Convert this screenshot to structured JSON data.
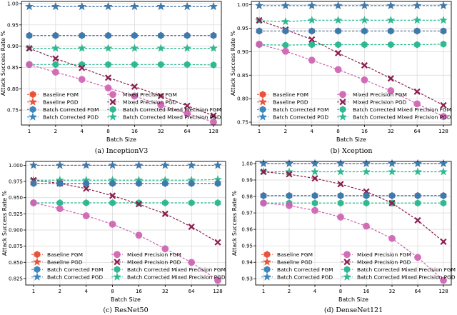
{
  "colors": {
    "baseline": "#e8472e",
    "batch_corrected": "#2e7fb8",
    "mixed_fgm": "#d063b3",
    "mixed_pgd": "#8a1f4e",
    "bc_mixed": "#22b58a"
  },
  "chart_data": [
    {
      "type": "line",
      "caption": "(a) InceptionV3",
      "xlabel": "Batch Size",
      "ylabel": "Attack Success Rate %",
      "categories": [
        "1",
        "2",
        "4",
        "8",
        "16",
        "32",
        "64",
        "128"
      ],
      "ylim": [
        0.715,
        1.005
      ],
      "yticks": [
        0.75,
        0.8,
        0.85,
        0.9,
        0.95,
        1.0
      ],
      "ytick_labels": [
        "0.75",
        "0.80",
        "0.85",
        "0.90",
        "0.95",
        "1.00"
      ],
      "grid": true,
      "legend_location": "lower-left",
      "series": [
        {
          "name": "Baseline FGM",
          "key": "baseline",
          "marker": "hexagon",
          "linestyle": "dashed",
          "values": [
            0.925,
            0.925,
            0.925,
            0.925,
            0.925,
            0.925,
            0.925,
            0.925
          ]
        },
        {
          "name": "Baseline PGD",
          "key": "baseline",
          "marker": "star",
          "linestyle": "dashed",
          "values": [
            0.993,
            0.993,
            0.993,
            0.993,
            0.993,
            0.993,
            0.993,
            0.993
          ]
        },
        {
          "name": "Batch Corrected FGM",
          "key": "batch_corrected",
          "marker": "hexagon",
          "linestyle": "dashed",
          "values": [
            0.925,
            0.925,
            0.925,
            0.925,
            0.925,
            0.925,
            0.925,
            0.925
          ]
        },
        {
          "name": "Batch Corrected PGD",
          "key": "batch_corrected",
          "marker": "star",
          "linestyle": "dashed",
          "values": [
            0.993,
            0.993,
            0.993,
            0.993,
            0.993,
            0.993,
            0.993,
            0.993
          ]
        },
        {
          "name": "Mixed Precision FGM",
          "key": "mixed_fgm",
          "marker": "circle",
          "linestyle": "dashed",
          "values": [
            0.857,
            0.839,
            0.822,
            0.802,
            0.783,
            0.762,
            0.742,
            0.722
          ]
        },
        {
          "name": "Mixed Precision PGD",
          "key": "mixed_pgd",
          "marker": "x",
          "linestyle": "dashed",
          "values": [
            0.895,
            0.871,
            0.849,
            0.826,
            0.805,
            0.783,
            0.76,
            0.737
          ]
        },
        {
          "name": "Batch Corrected Mixed Precision FGM",
          "key": "bc_mixed",
          "marker": "hexagon",
          "linestyle": "dashed",
          "values": [
            0.857,
            0.857,
            0.857,
            0.857,
            0.857,
            0.857,
            0.857,
            0.856
          ]
        },
        {
          "name": "Batch Corrected Mixed Precision PGD",
          "key": "bc_mixed",
          "marker": "star",
          "linestyle": "dashed",
          "values": [
            0.895,
            0.895,
            0.895,
            0.895,
            0.895,
            0.895,
            0.895,
            0.895
          ]
        }
      ]
    },
    {
      "type": "line",
      "caption": "(b) Xception",
      "xlabel": "Batch Size",
      "ylabel": "Attack Success Rate %",
      "categories": [
        "1",
        "2",
        "4",
        "8",
        "16",
        "32",
        "64",
        "128"
      ],
      "ylim": [
        0.744,
        1.007
      ],
      "yticks": [
        0.75,
        0.8,
        0.85,
        0.9,
        0.95,
        1.0
      ],
      "ytick_labels": [
        "0.75",
        "0.80",
        "0.85",
        "0.90",
        "0.95",
        "1.00"
      ],
      "grid": true,
      "legend_location": "lower-left",
      "series": [
        {
          "name": "Baseline FGM",
          "key": "baseline",
          "marker": "hexagon",
          "linestyle": "dashed",
          "values": [
            0.944,
            0.944,
            0.944,
            0.944,
            0.944,
            0.944,
            0.944,
            0.944
          ]
        },
        {
          "name": "Baseline PGD",
          "key": "baseline",
          "marker": "star",
          "linestyle": "dashed",
          "values": [
            0.998,
            0.998,
            0.998,
            0.998,
            0.998,
            0.998,
            0.998,
            0.998
          ]
        },
        {
          "name": "Batch Corrected FGM",
          "key": "batch_corrected",
          "marker": "hexagon",
          "linestyle": "dashed",
          "values": [
            0.944,
            0.944,
            0.944,
            0.944,
            0.944,
            0.944,
            0.944,
            0.944
          ]
        },
        {
          "name": "Batch Corrected PGD",
          "key": "batch_corrected",
          "marker": "star",
          "linestyle": "dashed",
          "values": [
            0.998,
            0.998,
            0.998,
            0.998,
            0.998,
            0.998,
            0.998,
            0.998
          ]
        },
        {
          "name": "Mixed Precision FGM",
          "key": "mixed_fgm",
          "marker": "circle",
          "linestyle": "dashed",
          "values": [
            0.916,
            0.901,
            0.882,
            0.862,
            0.84,
            0.817,
            0.789,
            0.762
          ]
        },
        {
          "name": "Mixed Precision PGD",
          "key": "mixed_pgd",
          "marker": "x",
          "linestyle": "dashed",
          "values": [
            0.967,
            0.947,
            0.926,
            0.897,
            0.871,
            0.843,
            0.815,
            0.786
          ]
        },
        {
          "name": "Batch Corrected Mixed Precision FGM",
          "key": "bc_mixed",
          "marker": "hexagon",
          "linestyle": "dashed",
          "values": [
            0.915,
            0.914,
            0.915,
            0.915,
            0.915,
            0.915,
            0.915,
            0.916
          ]
        },
        {
          "name": "Batch Corrected Mixed Precision PGD",
          "key": "bc_mixed",
          "marker": "star",
          "linestyle": "dashed",
          "values": [
            0.966,
            0.964,
            0.967,
            0.967,
            0.967,
            0.967,
            0.967,
            0.967
          ]
        }
      ]
    },
    {
      "type": "line",
      "caption": "(c) ResNet50",
      "xlabel": "Batch Size",
      "ylabel": "Attack Success Rate %",
      "categories": [
        "1",
        "2",
        "4",
        "8",
        "16",
        "32",
        "64",
        "128"
      ],
      "ylim": [
        0.815,
        1.006
      ],
      "yticks": [
        0.825,
        0.85,
        0.875,
        0.9,
        0.925,
        0.95,
        0.975,
        1.0
      ],
      "ytick_labels": [
        "0.825",
        "0.850",
        "0.875",
        "0.900",
        "0.925",
        "0.950",
        "0.975",
        "1.000"
      ],
      "grid": true,
      "legend_location": "lower-left",
      "series": [
        {
          "name": "Baseline FGM",
          "key": "baseline",
          "marker": "hexagon",
          "linestyle": "dashed",
          "values": [
            0.972,
            0.972,
            0.972,
            0.972,
            0.972,
            0.972,
            0.972,
            0.972
          ]
        },
        {
          "name": "Baseline PGD",
          "key": "baseline",
          "marker": "star",
          "linestyle": "dashed",
          "values": [
            1.0,
            1.0,
            1.0,
            1.0,
            1.0,
            1.0,
            1.0,
            1.0
          ]
        },
        {
          "name": "Batch Corrected FGM",
          "key": "batch_corrected",
          "marker": "hexagon",
          "linestyle": "dashed",
          "values": [
            0.972,
            0.972,
            0.972,
            0.972,
            0.972,
            0.972,
            0.972,
            0.972
          ]
        },
        {
          "name": "Batch Corrected PGD",
          "key": "batch_corrected",
          "marker": "star",
          "linestyle": "dashed",
          "values": [
            1.0,
            1.0,
            1.0,
            1.0,
            1.0,
            1.0,
            1.0,
            1.0
          ]
        },
        {
          "name": "Mixed Precision FGM",
          "key": "mixed_fgm",
          "marker": "circle",
          "linestyle": "dashed",
          "values": [
            0.942,
            0.933,
            0.922,
            0.909,
            0.892,
            0.871,
            0.85,
            0.822
          ]
        },
        {
          "name": "Mixed Precision PGD",
          "key": "mixed_pgd",
          "marker": "x",
          "linestyle": "dashed",
          "values": [
            0.977,
            0.972,
            0.964,
            0.953,
            0.94,
            0.925,
            0.905,
            0.881
          ]
        },
        {
          "name": "Batch Corrected Mixed Precision FGM",
          "key": "bc_mixed",
          "marker": "hexagon",
          "linestyle": "dashed",
          "values": [
            0.942,
            0.942,
            0.942,
            0.942,
            0.942,
            0.942,
            0.942,
            0.942
          ]
        },
        {
          "name": "Batch Corrected Mixed Precision PGD",
          "key": "bc_mixed",
          "marker": "star",
          "linestyle": "dashed",
          "values": [
            0.977,
            0.977,
            0.977,
            0.977,
            0.977,
            0.977,
            0.977,
            0.978
          ]
        }
      ]
    },
    {
      "type": "line",
      "caption": "(d) DenseNet121",
      "xlabel": "Batch Size",
      "ylabel": "Attack Success Rate %",
      "categories": [
        "1",
        "2",
        "4",
        "8",
        "16",
        "32",
        "64",
        "128"
      ],
      "ylim": [
        0.9262,
        1.0013
      ],
      "yticks": [
        0.93,
        0.94,
        0.95,
        0.96,
        0.97,
        0.98,
        0.99,
        1.0
      ],
      "ytick_labels": [
        "0.93",
        "0.94",
        "0.95",
        "0.96",
        "0.97",
        "0.98",
        "0.99",
        "1.00"
      ],
      "grid": true,
      "legend_location": "lower-left",
      "series": [
        {
          "name": "Baseline FGM",
          "key": "baseline",
          "marker": "hexagon",
          "linestyle": "dashed",
          "values": [
            0.9805,
            0.9805,
            0.9805,
            0.9805,
            0.9805,
            0.9805,
            0.9805,
            0.9805
          ]
        },
        {
          "name": "Baseline PGD",
          "key": "baseline",
          "marker": "star",
          "linestyle": "dashed",
          "values": [
            1.0,
            1.0,
            1.0,
            1.0,
            1.0,
            1.0,
            1.0,
            1.0
          ]
        },
        {
          "name": "Batch Corrected FGM",
          "key": "batch_corrected",
          "marker": "hexagon",
          "linestyle": "dashed",
          "values": [
            0.9805,
            0.9805,
            0.9805,
            0.9805,
            0.9805,
            0.9805,
            0.9805,
            0.9805
          ]
        },
        {
          "name": "Batch Corrected PGD",
          "key": "batch_corrected",
          "marker": "star",
          "linestyle": "dashed",
          "values": [
            1.0,
            1.0,
            1.0,
            1.0,
            1.0,
            1.0,
            1.0,
            1.0
          ]
        },
        {
          "name": "Mixed Precision FGM",
          "key": "mixed_fgm",
          "marker": "circle",
          "linestyle": "dashed",
          "values": [
            0.976,
            0.9745,
            0.9715,
            0.9675,
            0.962,
            0.9545,
            0.943,
            0.929
          ]
        },
        {
          "name": "Mixed Precision PGD",
          "key": "mixed_pgd",
          "marker": "x",
          "linestyle": "dashed",
          "values": [
            0.995,
            0.9935,
            0.991,
            0.9875,
            0.983,
            0.976,
            0.9655,
            0.9525
          ]
        },
        {
          "name": "Batch Corrected Mixed Precision FGM",
          "key": "bc_mixed",
          "marker": "hexagon",
          "linestyle": "dashed",
          "values": [
            0.976,
            0.976,
            0.976,
            0.976,
            0.976,
            0.976,
            0.976,
            0.976
          ]
        },
        {
          "name": "Batch Corrected Mixed Precision PGD",
          "key": "bc_mixed",
          "marker": "star",
          "linestyle": "dashed",
          "values": [
            0.995,
            0.995,
            0.995,
            0.995,
            0.995,
            0.995,
            0.995,
            0.995
          ]
        }
      ]
    }
  ]
}
